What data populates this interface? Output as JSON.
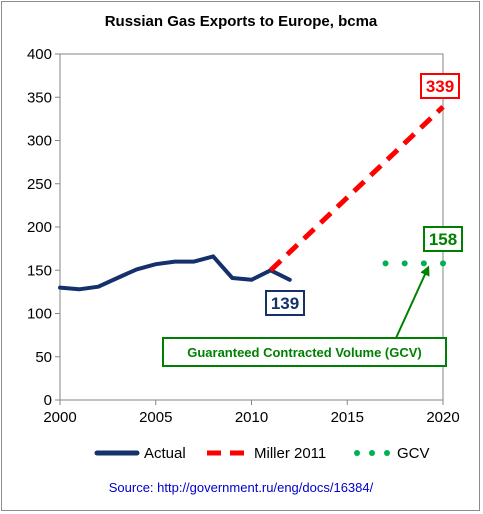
{
  "chart_data": {
    "type": "line",
    "title": "Russian Gas Exports to Europe, bcma",
    "xlabel": "",
    "ylabel": "",
    "xlim": [
      2000,
      2020
    ],
    "ylim": [
      0,
      400
    ],
    "x_ticks": [
      "2000",
      "2005",
      "2010",
      "2015",
      "2020"
    ],
    "y_ticks": [
      "0",
      "50",
      "100",
      "150",
      "200",
      "250",
      "300",
      "350",
      "400"
    ],
    "grid": false,
    "legend_position": "bottom",
    "series": [
      {
        "name": "Actual",
        "color": "#15306b",
        "style": "solid",
        "x": [
          2000,
          2001,
          2002,
          2003,
          2004,
          2005,
          2006,
          2007,
          2008,
          2009,
          2010,
          2011,
          2012
        ],
        "y": [
          130,
          128,
          131,
          141,
          151,
          157,
          160,
          160,
          166,
          141,
          139,
          150,
          139
        ]
      },
      {
        "name": "Miller 2011",
        "color": "#ff0000",
        "style": "dashed",
        "x": [
          2011,
          2020
        ],
        "y": [
          150,
          339
        ]
      },
      {
        "name": "GCV",
        "color": "#00b050",
        "style": "dotted",
        "x": [
          2017,
          2018,
          2019,
          2020
        ],
        "y": [
          158,
          158,
          158,
          158
        ]
      }
    ],
    "annotations": [
      {
        "text": "339",
        "color": "#ff0000"
      },
      {
        "text": "158",
        "color": "#008000"
      },
      {
        "text": "139",
        "color": "#15306b"
      },
      {
        "text": "Guaranteed Contracted Volume (GCV)",
        "color": "#008000"
      }
    ],
    "source": "Source: http://government.ru/eng/docs/16384/",
    "source_color": "#0000cc"
  }
}
